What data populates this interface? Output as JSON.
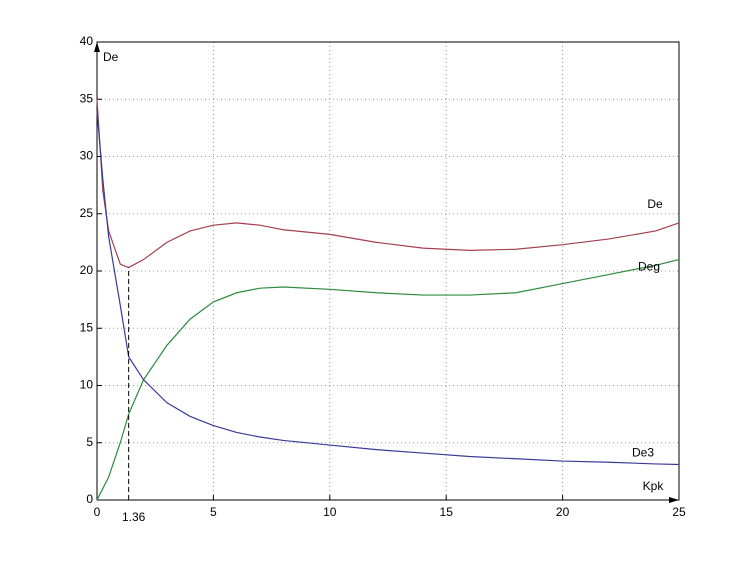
{
  "chart_data": {
    "type": "line",
    "xlabel": "Kpk",
    "ylabel": "De",
    "x": [
      0,
      0.25,
      0.5,
      1,
      1.36,
      2,
      3,
      4,
      5,
      6,
      7,
      8,
      10,
      12,
      14,
      16,
      18,
      20,
      22,
      24,
      25
    ],
    "series": [
      {
        "name": "De",
        "color": "#a3404f",
        "values": [
          35,
          27,
          23.5,
          20.6,
          20.3,
          21,
          22.5,
          23.5,
          24,
          24.2,
          24,
          23.6,
          23.2,
          22.5,
          22,
          21.8,
          21.9,
          22.3,
          22.8,
          23.5,
          24.2
        ]
      },
      {
        "name": "Deg",
        "color": "#2e8b3e",
        "values": [
          0,
          1,
          2,
          5,
          7.5,
          10.5,
          13.5,
          15.8,
          17.3,
          18.1,
          18.5,
          18.6,
          18.4,
          18.1,
          17.9,
          17.9,
          18.1,
          18.9,
          19.7,
          20.5,
          21
        ]
      },
      {
        "name": "De3",
        "color": "#3a3a9a",
        "values": [
          34,
          28,
          23,
          17,
          12.5,
          10.5,
          8.5,
          7.3,
          6.5,
          5.9,
          5.5,
          5.2,
          4.8,
          4.4,
          4.1,
          3.8,
          3.6,
          3.4,
          3.3,
          3.15,
          3.1
        ]
      }
    ],
    "marker": {
      "value": 1.36,
      "label": "1.36"
    },
    "xlim": [
      0,
      25
    ],
    "xticks": [
      0,
      5,
      10,
      15,
      20,
      25
    ],
    "ylim": [
      0,
      40
    ],
    "yticks": [
      0,
      5,
      10,
      15,
      20,
      25,
      30,
      35,
      40
    ],
    "grid": true
  }
}
